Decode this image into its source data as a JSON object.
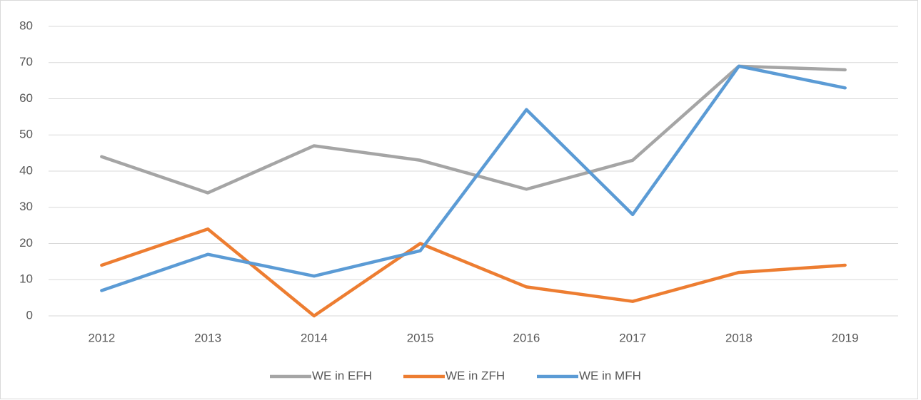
{
  "chart_data": {
    "type": "line",
    "categories": [
      "2012",
      "2013",
      "2014",
      "2015",
      "2016",
      "2017",
      "2018",
      "2019"
    ],
    "series": [
      {
        "name": "WE in EFH",
        "color": "#a5a5a5",
        "values": [
          44,
          34,
          47,
          43,
          35,
          43,
          69,
          68
        ]
      },
      {
        "name": "WE in ZFH",
        "color": "#ed7d31",
        "values": [
          14,
          24,
          0,
          20,
          8,
          4,
          12,
          14
        ]
      },
      {
        "name": "WE in MFH",
        "color": "#5b9bd5",
        "values": [
          7,
          17,
          11,
          18,
          57,
          28,
          69,
          63
        ]
      }
    ],
    "ylim": [
      0,
      80
    ],
    "yticks": [
      0,
      10,
      20,
      30,
      40,
      50,
      60,
      70,
      80
    ],
    "grid": true,
    "legend": "bottom"
  }
}
